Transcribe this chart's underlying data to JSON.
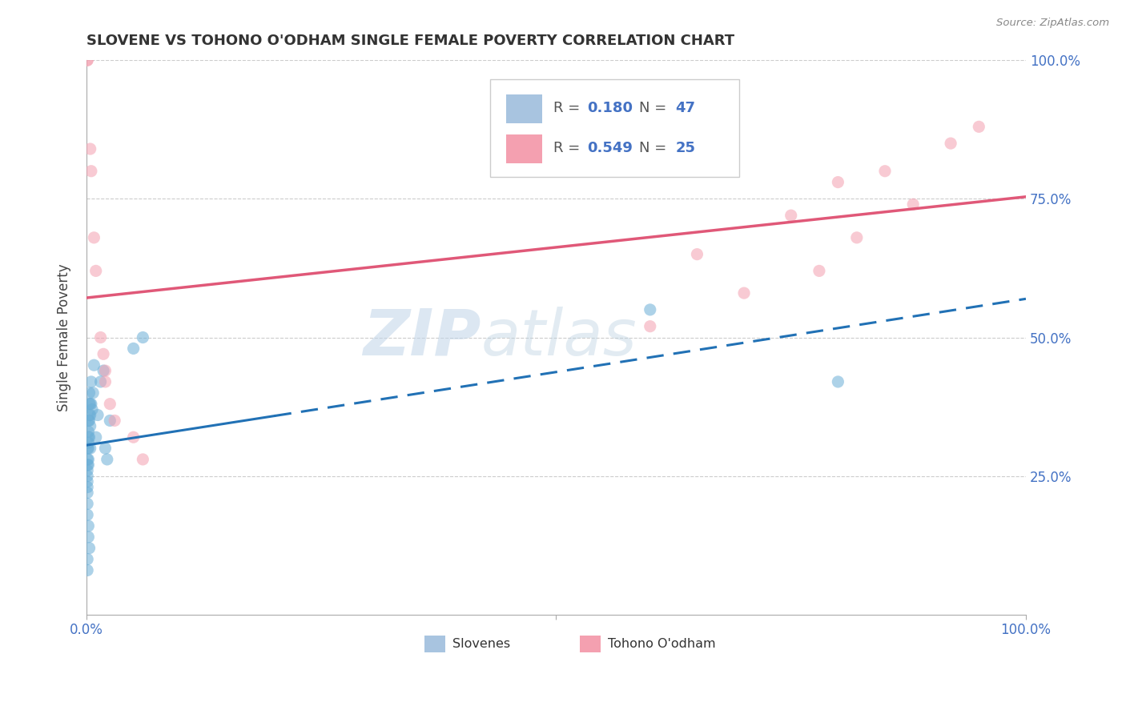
{
  "title": "SLOVENE VS TOHONO O'ODHAM SINGLE FEMALE POVERTY CORRELATION CHART",
  "source": "Source: ZipAtlas.com",
  "ylabel": "Single Female Poverty",
  "xlim": [
    0.0,
    1.0
  ],
  "ylim": [
    0.0,
    1.0
  ],
  "y_tick_labels": [
    "25.0%",
    "50.0%",
    "75.0%",
    "100.0%"
  ],
  "y_tick_positions": [
    0.25,
    0.5,
    0.75,
    1.0
  ],
  "R_slovene": "0.180",
  "N_slovene": "47",
  "R_tohono": "0.549",
  "N_tohono": "25",
  "slovene_x": [
    0.001,
    0.001,
    0.001,
    0.001,
    0.001,
    0.001,
    0.001,
    0.001,
    0.002,
    0.002,
    0.002,
    0.002,
    0.002,
    0.002,
    0.002,
    0.003,
    0.003,
    0.003,
    0.003,
    0.003,
    0.004,
    0.004,
    0.004,
    0.004,
    0.005,
    0.005,
    0.006,
    0.007,
    0.008,
    0.01,
    0.012,
    0.015,
    0.018,
    0.02,
    0.022,
    0.025,
    0.001,
    0.001,
    0.002,
    0.002,
    0.003,
    0.05,
    0.06,
    0.001,
    0.001,
    0.6,
    0.8
  ],
  "slovene_y": [
    0.24,
    0.26,
    0.28,
    0.3,
    0.22,
    0.27,
    0.25,
    0.23,
    0.32,
    0.35,
    0.28,
    0.3,
    0.27,
    0.33,
    0.31,
    0.38,
    0.35,
    0.4,
    0.32,
    0.36,
    0.38,
    0.34,
    0.3,
    0.36,
    0.42,
    0.38,
    0.37,
    0.4,
    0.45,
    0.32,
    0.36,
    0.42,
    0.44,
    0.3,
    0.28,
    0.35,
    0.2,
    0.18,
    0.16,
    0.14,
    0.12,
    0.48,
    0.5,
    0.08,
    0.1,
    0.55,
    0.42
  ],
  "tohono_x": [
    0.001,
    0.001,
    0.004,
    0.005,
    0.008,
    0.01,
    0.018,
    0.02,
    0.025,
    0.03,
    0.05,
    0.06,
    0.015,
    0.02,
    0.6,
    0.65,
    0.7,
    0.75,
    0.78,
    0.8,
    0.82,
    0.85,
    0.88,
    0.92,
    0.95
  ],
  "tohono_y": [
    1.0,
    1.0,
    0.84,
    0.8,
    0.68,
    0.62,
    0.47,
    0.42,
    0.38,
    0.35,
    0.32,
    0.28,
    0.5,
    0.44,
    0.52,
    0.65,
    0.58,
    0.72,
    0.62,
    0.78,
    0.68,
    0.8,
    0.74,
    0.85,
    0.88
  ],
  "blue_color": "#6baed6",
  "blue_line_color": "#2171b5",
  "pink_color": "#f4a0b0",
  "pink_line_color": "#e05878",
  "marker_alpha": 0.55,
  "marker_size": 120,
  "watermark_zip": "ZIP",
  "watermark_atlas": "atlas",
  "background_color": "#ffffff",
  "grid_color": "#cccccc",
  "title_fontsize": 13,
  "label_fontsize": 12,
  "legend_fontsize": 13
}
